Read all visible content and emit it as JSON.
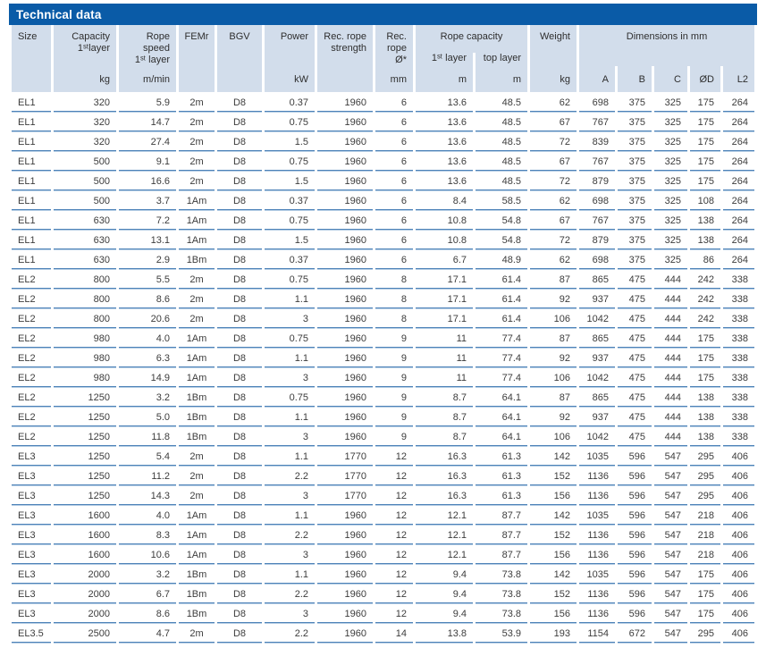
{
  "title": "Technical data",
  "colors": {
    "title_bar_bg": "#0a5ba7",
    "header_bg": "#d2ddeb",
    "line_dark": "#4d82b8",
    "line_light": "#b5cde4",
    "text_color": "#3c3c3c"
  },
  "header": {
    "size": "Size",
    "capacity": [
      "Capacity",
      "1ˢᵗlayer"
    ],
    "rope_speed": [
      "Rope speed",
      "1ˢᵗ layer"
    ],
    "femr": "FEMr",
    "bgv": "BGV",
    "power": "Power",
    "rec_rope_strength": [
      "Rec. rope",
      "strength"
    ],
    "rec_rope_dia": [
      "Rec.",
      "rope Ø*"
    ],
    "rope_capacity": "Rope capacity",
    "rope_capacity_sub": [
      "1ˢᵗ layer",
      "top layer"
    ],
    "weight": "Weight",
    "dimensions": "Dimensions in mm"
  },
  "units": [
    "",
    "kg",
    "m/min",
    "",
    "",
    "kW",
    "",
    "mm",
    "m",
    "m",
    "kg",
    "A",
    "B",
    "C",
    "ØD",
    "L2"
  ],
  "columns": [
    "size",
    "capacity",
    "rope-speed",
    "femr",
    "bgv",
    "power",
    "rec-rope-strength",
    "rec-rope-dia",
    "rope-capacity-1st-layer",
    "rope-capacity-top-layer",
    "weight",
    "dim-a",
    "dim-b",
    "dim-c",
    "dim-d",
    "dim-l2"
  ],
  "rows": [
    [
      "EL1",
      "320",
      "5.9",
      "2m",
      "D8",
      "0.37",
      "1960",
      "6",
      "13.6",
      "48.5",
      "62",
      "698",
      "375",
      "325",
      "175",
      "264"
    ],
    [
      "EL1",
      "320",
      "14.7",
      "2m",
      "D8",
      "0.75",
      "1960",
      "6",
      "13.6",
      "48.5",
      "67",
      "767",
      "375",
      "325",
      "175",
      "264"
    ],
    [
      "EL1",
      "320",
      "27.4",
      "2m",
      "D8",
      "1.5",
      "1960",
      "6",
      "13.6",
      "48.5",
      "72",
      "839",
      "375",
      "325",
      "175",
      "264"
    ],
    [
      "EL1",
      "500",
      "9.1",
      "2m",
      "D8",
      "0.75",
      "1960",
      "6",
      "13.6",
      "48.5",
      "67",
      "767",
      "375",
      "325",
      "175",
      "264"
    ],
    [
      "EL1",
      "500",
      "16.6",
      "2m",
      "D8",
      "1.5",
      "1960",
      "6",
      "13.6",
      "48.5",
      "72",
      "879",
      "375",
      "325",
      "175",
      "264"
    ],
    [
      "EL1",
      "500",
      "3.7",
      "1Am",
      "D8",
      "0.37",
      "1960",
      "6",
      "8.4",
      "58.5",
      "62",
      "698",
      "375",
      "325",
      "108",
      "264"
    ],
    [
      "EL1",
      "630",
      "7.2",
      "1Am",
      "D8",
      "0.75",
      "1960",
      "6",
      "10.8",
      "54.8",
      "67",
      "767",
      "375",
      "325",
      "138",
      "264"
    ],
    [
      "EL1",
      "630",
      "13.1",
      "1Am",
      "D8",
      "1.5",
      "1960",
      "6",
      "10.8",
      "54.8",
      "72",
      "879",
      "375",
      "325",
      "138",
      "264"
    ],
    [
      "EL1",
      "630",
      "2.9",
      "1Bm",
      "D8",
      "0.37",
      "1960",
      "6",
      "6.7",
      "48.9",
      "62",
      "698",
      "375",
      "325",
      "86",
      "264"
    ],
    [
      "EL2",
      "800",
      "5.5",
      "2m",
      "D8",
      "0.75",
      "1960",
      "8",
      "17.1",
      "61.4",
      "87",
      "865",
      "475",
      "444",
      "242",
      "338"
    ],
    [
      "EL2",
      "800",
      "8.6",
      "2m",
      "D8",
      "1.1",
      "1960",
      "8",
      "17.1",
      "61.4",
      "92",
      "937",
      "475",
      "444",
      "242",
      "338"
    ],
    [
      "EL2",
      "800",
      "20.6",
      "2m",
      "D8",
      "3",
      "1960",
      "8",
      "17.1",
      "61.4",
      "106",
      "1042",
      "475",
      "444",
      "242",
      "338"
    ],
    [
      "EL2",
      "980",
      "4.0",
      "1Am",
      "D8",
      "0.75",
      "1960",
      "9",
      "11",
      "77.4",
      "87",
      "865",
      "475",
      "444",
      "175",
      "338"
    ],
    [
      "EL2",
      "980",
      "6.3",
      "1Am",
      "D8",
      "1.1",
      "1960",
      "9",
      "11",
      "77.4",
      "92",
      "937",
      "475",
      "444",
      "175",
      "338"
    ],
    [
      "EL2",
      "980",
      "14.9",
      "1Am",
      "D8",
      "3",
      "1960",
      "9",
      "11",
      "77.4",
      "106",
      "1042",
      "475",
      "444",
      "175",
      "338"
    ],
    [
      "EL2",
      "1250",
      "3.2",
      "1Bm",
      "D8",
      "0.75",
      "1960",
      "9",
      "8.7",
      "64.1",
      "87",
      "865",
      "475",
      "444",
      "138",
      "338"
    ],
    [
      "EL2",
      "1250",
      "5.0",
      "1Bm",
      "D8",
      "1.1",
      "1960",
      "9",
      "8.7",
      "64.1",
      "92",
      "937",
      "475",
      "444",
      "138",
      "338"
    ],
    [
      "EL2",
      "1250",
      "11.8",
      "1Bm",
      "D8",
      "3",
      "1960",
      "9",
      "8.7",
      "64.1",
      "106",
      "1042",
      "475",
      "444",
      "138",
      "338"
    ],
    [
      "EL3",
      "1250",
      "5.4",
      "2m",
      "D8",
      "1.1",
      "1770",
      "12",
      "16.3",
      "61.3",
      "142",
      "1035",
      "596",
      "547",
      "295",
      "406"
    ],
    [
      "EL3",
      "1250",
      "11.2",
      "2m",
      "D8",
      "2.2",
      "1770",
      "12",
      "16.3",
      "61.3",
      "152",
      "1136",
      "596",
      "547",
      "295",
      "406"
    ],
    [
      "EL3",
      "1250",
      "14.3",
      "2m",
      "D8",
      "3",
      "1770",
      "12",
      "16.3",
      "61.3",
      "156",
      "1136",
      "596",
      "547",
      "295",
      "406"
    ],
    [
      "EL3",
      "1600",
      "4.0",
      "1Am",
      "D8",
      "1.1",
      "1960",
      "12",
      "12.1",
      "87.7",
      "142",
      "1035",
      "596",
      "547",
      "218",
      "406"
    ],
    [
      "EL3",
      "1600",
      "8.3",
      "1Am",
      "D8",
      "2.2",
      "1960",
      "12",
      "12.1",
      "87.7",
      "152",
      "1136",
      "596",
      "547",
      "218",
      "406"
    ],
    [
      "EL3",
      "1600",
      "10.6",
      "1Am",
      "D8",
      "3",
      "1960",
      "12",
      "12.1",
      "87.7",
      "156",
      "1136",
      "596",
      "547",
      "218",
      "406"
    ],
    [
      "EL3",
      "2000",
      "3.2",
      "1Bm",
      "D8",
      "1.1",
      "1960",
      "12",
      "9.4",
      "73.8",
      "142",
      "1035",
      "596",
      "547",
      "175",
      "406"
    ],
    [
      "EL3",
      "2000",
      "6.7",
      "1Bm",
      "D8",
      "2.2",
      "1960",
      "12",
      "9.4",
      "73.8",
      "152",
      "1136",
      "596",
      "547",
      "175",
      "406"
    ],
    [
      "EL3",
      "2000",
      "8.6",
      "1Bm",
      "D8",
      "3",
      "1960",
      "12",
      "9.4",
      "73.8",
      "156",
      "1136",
      "596",
      "547",
      "175",
      "406"
    ],
    [
      "EL3.5",
      "2500",
      "4.7",
      "2m",
      "D8",
      "2.2",
      "1960",
      "14",
      "13.8",
      "53.9",
      "193",
      "1154",
      "672",
      "547",
      "295",
      "406"
    ]
  ]
}
